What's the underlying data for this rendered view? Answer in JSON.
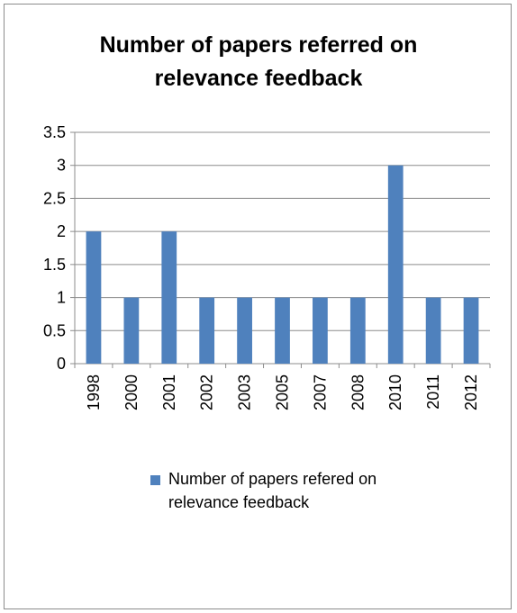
{
  "chart_data": {
    "type": "bar",
    "title_lines": [
      "Number of papers referred on",
      "relevance feedback"
    ],
    "categories": [
      "1998",
      "2000",
      "2001",
      "2002",
      "2003",
      "2005",
      "2007",
      "2008",
      "2010",
      "2011",
      "2012"
    ],
    "series": [
      {
        "name": "Number of papers refered on relevance feedback",
        "values": [
          2,
          1,
          2,
          1,
          1,
          1,
          1,
          1,
          3,
          1,
          1
        ],
        "color": "#4f81bd"
      }
    ],
    "yticks": [
      "0",
      "0.5",
      "1",
      "1.5",
      "2",
      "2.5",
      "3",
      "3.5"
    ],
    "ylim": [
      0,
      3.5
    ],
    "grid": true,
    "legend_position": "bottom"
  }
}
